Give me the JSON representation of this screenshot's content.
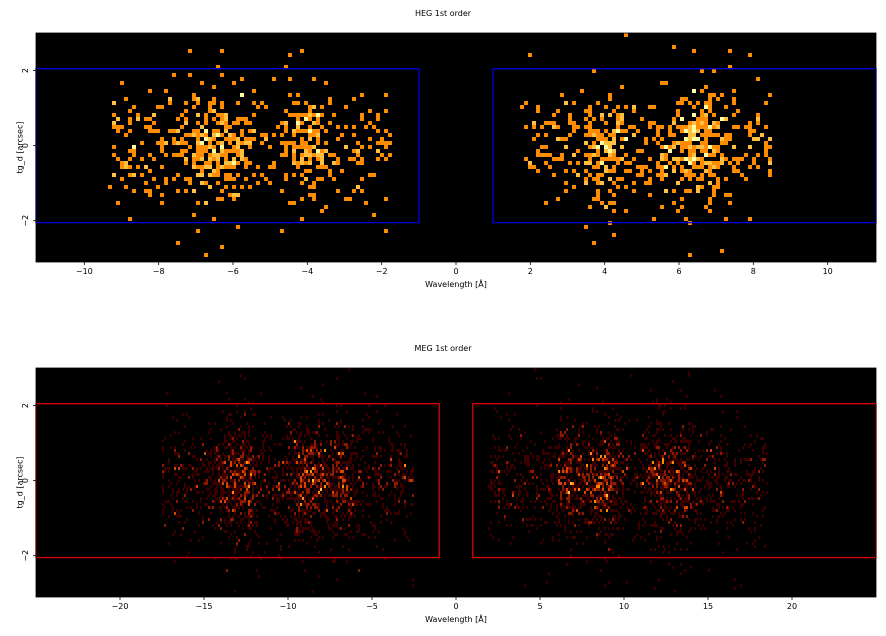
{
  "chart_data": [
    {
      "type": "heatmap",
      "title": "HEG 1st order",
      "xlabel": "Wavelength [Å]",
      "ylabel": "tg_d [arcsec]",
      "xlim": [
        -11.3,
        11.3
      ],
      "ylim": [
        -3.1,
        3.0
      ],
      "xticks": [
        -10,
        -8,
        -6,
        -4,
        -2,
        0,
        2,
        4,
        6,
        8,
        10
      ],
      "xtick_labels": [
        "−10",
        "−8",
        "−6",
        "−4",
        "−2",
        "0",
        "2",
        "4",
        "6",
        "8",
        "10"
      ],
      "yticks": [
        -2,
        0,
        2
      ],
      "ytick_labels": [
        "−2",
        "0",
        "2"
      ],
      "background": "#000000",
      "colormap": [
        "#3a0000",
        "#8b1a00",
        "#d44500",
        "#ff8c00",
        "#ffc040",
        "#ffffa0"
      ],
      "extraction_regions": [
        {
          "x": [
            -11.3,
            -1.0
          ],
          "y": [
            -2.05,
            2.05
          ]
        },
        {
          "x": [
            1.0,
            11.3
          ],
          "y": [
            -2.05,
            2.05
          ]
        }
      ],
      "region_color": "#0000dd",
      "source_clusters": [
        {
          "x_range": [
            -9.3,
            -1.8
          ],
          "peaks": [
            -6.8,
            -6.2,
            -4.0
          ]
        },
        {
          "x_range": [
            1.8,
            8.5
          ],
          "peaks": [
            6.7,
            6.2,
            4.0
          ]
        }
      ],
      "grid": false
    },
    {
      "type": "heatmap",
      "title": "MEG 1st order",
      "xlabel": "Wavelength [Å]",
      "ylabel": "tg_d [arcsec]",
      "xlim": [
        -25.0,
        25.0
      ],
      "ylim": [
        -3.1,
        3.0
      ],
      "xticks": [
        -20,
        -15,
        -10,
        -5,
        0,
        5,
        10,
        15,
        20
      ],
      "xtick_labels": [
        "−20",
        "−15",
        "−10",
        "−5",
        "0",
        "5",
        "10",
        "15",
        "20"
      ],
      "yticks": [
        -2,
        0,
        2
      ],
      "ytick_labels": [
        "−2",
        "0",
        "2"
      ],
      "background": "#000000",
      "colormap": [
        "#3a0000",
        "#8b1a00",
        "#d44500",
        "#ff8c00",
        "#ffc040",
        "#ffffa0"
      ],
      "extraction_regions": [
        {
          "x": [
            -25.0,
            -1.0
          ],
          "y": [
            -2.05,
            2.05
          ]
        },
        {
          "x": [
            1.0,
            25.0
          ],
          "y": [
            -2.05,
            2.05
          ]
        }
      ],
      "region_color": "#dd0000",
      "source_clusters": [
        {
          "x_range": [
            -17.5,
            -2.5
          ],
          "peaks": [
            -13.5,
            -12.5,
            -9.2,
            -8.5,
            -6.8
          ]
        },
        {
          "x_range": [
            2.0,
            18.5
          ],
          "peaks": [
            6.7,
            8.4,
            9.2,
            12.2,
            13.5
          ]
        }
      ],
      "grid": false
    }
  ]
}
